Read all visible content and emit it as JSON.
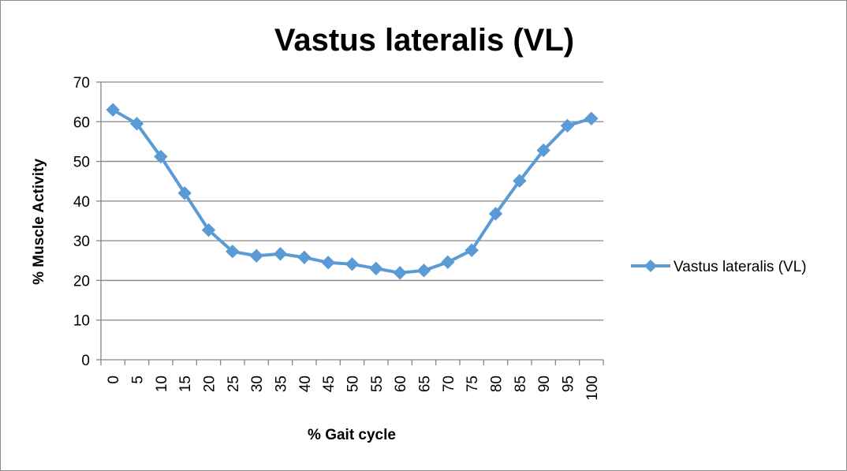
{
  "chart_data": {
    "type": "line",
    "title": "Vastus lateralis (VL)",
    "xlabel": "% Gait cycle",
    "ylabel": "% Muscle Activity",
    "categories": [
      "0",
      "5",
      "10",
      "15",
      "20",
      "25",
      "30",
      "35",
      "40",
      "45",
      "50",
      "55",
      "60",
      "65",
      "70",
      "75",
      "80",
      "85",
      "90",
      "95",
      "100"
    ],
    "series": [
      {
        "name": "Vastus lateralis (VL)",
        "color": "#5b9bd5",
        "values": [
          63,
          59.5,
          51.2,
          42,
          32.7,
          27.3,
          26.2,
          26.7,
          25.8,
          24.5,
          24.1,
          23,
          21.9,
          22.5,
          24.6,
          27.6,
          36.8,
          45.1,
          52.8,
          59,
          60.8
        ]
      }
    ],
    "yticks": [
      0,
      10,
      20,
      30,
      40,
      50,
      60,
      70
    ],
    "ylim": [
      0,
      70
    ],
    "grid": true,
    "legend_position": "right",
    "marker": "diamond"
  }
}
